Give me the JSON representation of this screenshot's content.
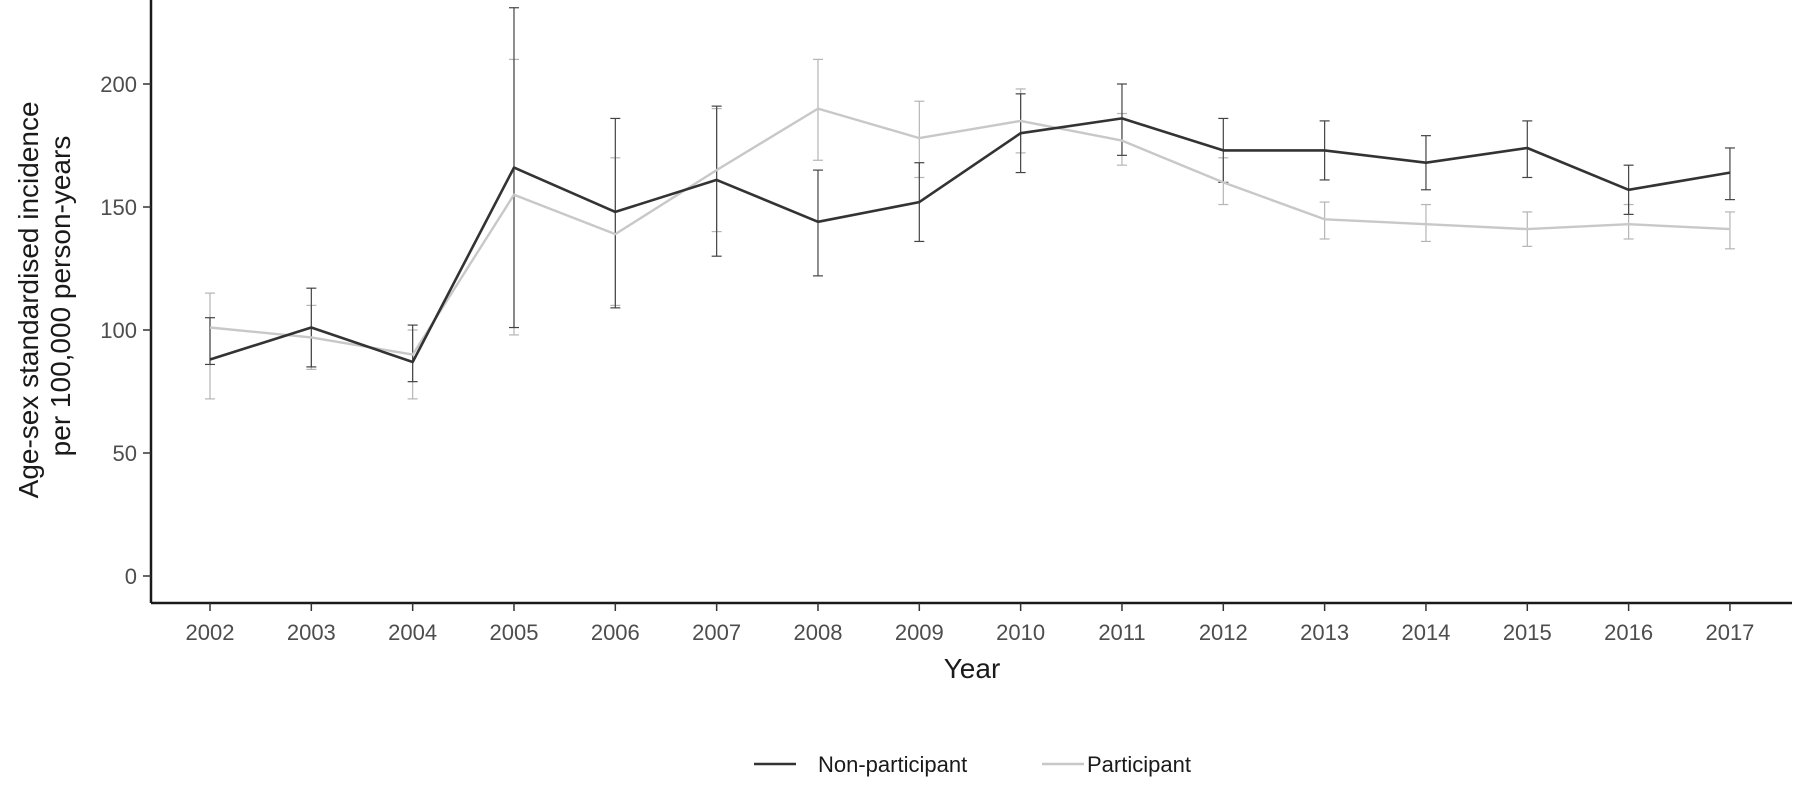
{
  "chart_data": {
    "type": "line",
    "title": "",
    "xlabel": "Year",
    "ylabel": "Age-sex standardised incidence per 100,000 person-years",
    "ylabel_lines": [
      "Age-sex standardised incidence",
      "per 100,000 person-years"
    ],
    "x": [
      "2002",
      "2003",
      "2004",
      "2005",
      "2006",
      "2007",
      "2008",
      "2009",
      "2010",
      "2011",
      "2012",
      "2013",
      "2014",
      "2015",
      "2016",
      "2017"
    ],
    "ylim": [
      0,
      230
    ],
    "yticks": [
      "0",
      "50",
      "100",
      "150",
      "200"
    ],
    "grid": false,
    "legend_position": "bottom",
    "series": [
      {
        "name": "Non-participant",
        "color": "#333333",
        "values": [
          88,
          101,
          87,
          166,
          148,
          161,
          144,
          152,
          180,
          186,
          173,
          173,
          168,
          174,
          157,
          164
        ],
        "lower": [
          86,
          85,
          79,
          101,
          109,
          130,
          122,
          136,
          164,
          171,
          160,
          161,
          157,
          162,
          147,
          153
        ],
        "upper": [
          105,
          117,
          102,
          231,
          186,
          191,
          165,
          168,
          196,
          200,
          186,
          185,
          179,
          185,
          167,
          174
        ]
      },
      {
        "name": "Participant",
        "color": "#c8c8c8",
        "values": [
          101,
          97,
          90,
          155,
          139,
          165,
          190,
          178,
          185,
          177,
          160,
          145,
          143,
          141,
          143,
          141
        ],
        "lower": [
          72,
          84,
          72,
          98,
          110,
          140,
          169,
          162,
          172,
          167,
          151,
          137,
          136,
          134,
          137,
          133
        ],
        "upper": [
          115,
          110,
          100,
          210,
          170,
          190,
          210,
          193,
          198,
          188,
          170,
          152,
          151,
          148,
          151,
          148
        ]
      }
    ]
  }
}
